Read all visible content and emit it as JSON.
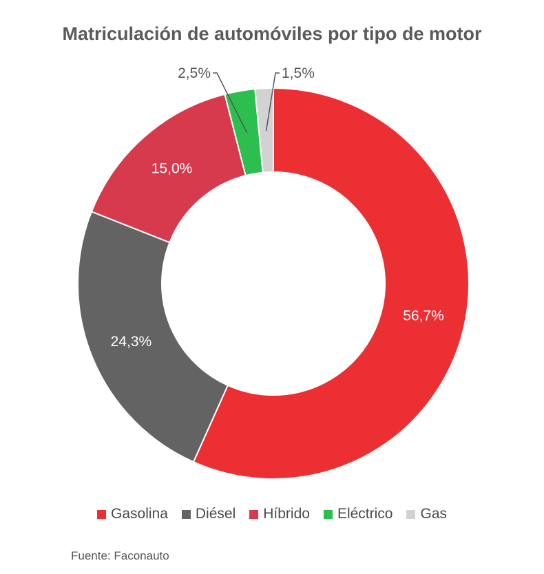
{
  "chart_data": {
    "type": "donut",
    "title": "Matriculación de automóviles por tipo de motor",
    "categories": [
      "Gasolina",
      "Diésel",
      "Híbrido",
      "Eléctrico",
      "Gas"
    ],
    "values": [
      56.7,
      24.3,
      15.0,
      2.5,
      1.5
    ],
    "labels": [
      "56,7%",
      "24,3%",
      "15,0%",
      "2,5%",
      "1,5%"
    ],
    "colors": [
      "#ec2f33",
      "#636363",
      "#d63a4c",
      "#2cbe4e",
      "#d2d2d2"
    ],
    "legend_position": "bottom"
  },
  "source": "Fuente: Faconauto"
}
